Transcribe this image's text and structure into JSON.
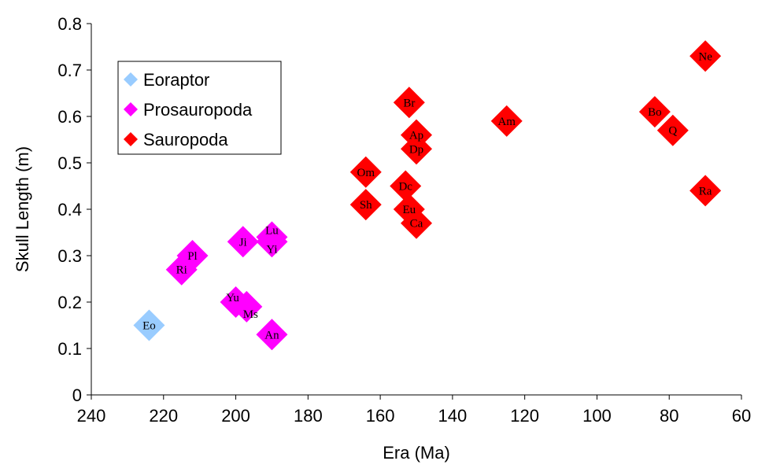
{
  "chart_data": {
    "type": "scatter",
    "title": "",
    "xlabel": "Era (Ma)",
    "ylabel": "Skull Length (m)",
    "xlim": [
      240,
      60
    ],
    "ylim": [
      0,
      0.8
    ],
    "x_reversed": true,
    "xticks": [
      "240",
      "220",
      "200",
      "180",
      "160",
      "140",
      "120",
      "100",
      "80",
      "60"
    ],
    "yticks": [
      "0",
      "0.1",
      "0.2",
      "0.3",
      "0.4",
      "0.5",
      "0.6",
      "0.7",
      "0.8"
    ],
    "grid": false,
    "legend_position": "top-left",
    "series": [
      {
        "name": "Eoraptor",
        "color": "#99ccff",
        "points": [
          {
            "label": "Eo",
            "x": 224,
            "y": 0.15
          }
        ]
      },
      {
        "name": "Prosauropoda",
        "color": "#ff00ff",
        "points": [
          {
            "label": "Ri",
            "x": 215,
            "y": 0.27
          },
          {
            "label": "Pl",
            "x": 212,
            "y": 0.3
          },
          {
            "label": "Yu",
            "x": 200,
            "y": 0.2
          },
          {
            "label": "Ms",
            "x": 197,
            "y": 0.19
          },
          {
            "label": "Ji",
            "x": 198,
            "y": 0.33
          },
          {
            "label": "Lu",
            "x": 190,
            "y": 0.34
          },
          {
            "label": "Yi",
            "x": 190,
            "y": 0.33
          },
          {
            "label": "An",
            "x": 190,
            "y": 0.13
          }
        ]
      },
      {
        "name": "Sauropoda",
        "color": "#ff0000",
        "points": [
          {
            "label": "Sh",
            "x": 164,
            "y": 0.41
          },
          {
            "label": "Om",
            "x": 164,
            "y": 0.48
          },
          {
            "label": "Dc",
            "x": 153,
            "y": 0.45
          },
          {
            "label": "Eu",
            "x": 152,
            "y": 0.4
          },
          {
            "label": "Ca",
            "x": 150,
            "y": 0.37
          },
          {
            "label": "Br",
            "x": 152,
            "y": 0.63
          },
          {
            "label": "Ap",
            "x": 150,
            "y": 0.56
          },
          {
            "label": "Dp",
            "x": 150,
            "y": 0.53
          },
          {
            "label": "Am",
            "x": 125,
            "y": 0.59
          },
          {
            "label": "Bo",
            "x": 84,
            "y": 0.61
          },
          {
            "label": "Q",
            "x": 79,
            "y": 0.57
          },
          {
            "label": "Ne",
            "x": 70,
            "y": 0.73
          },
          {
            "label": "Ra",
            "x": 70,
            "y": 0.44
          }
        ]
      }
    ]
  }
}
